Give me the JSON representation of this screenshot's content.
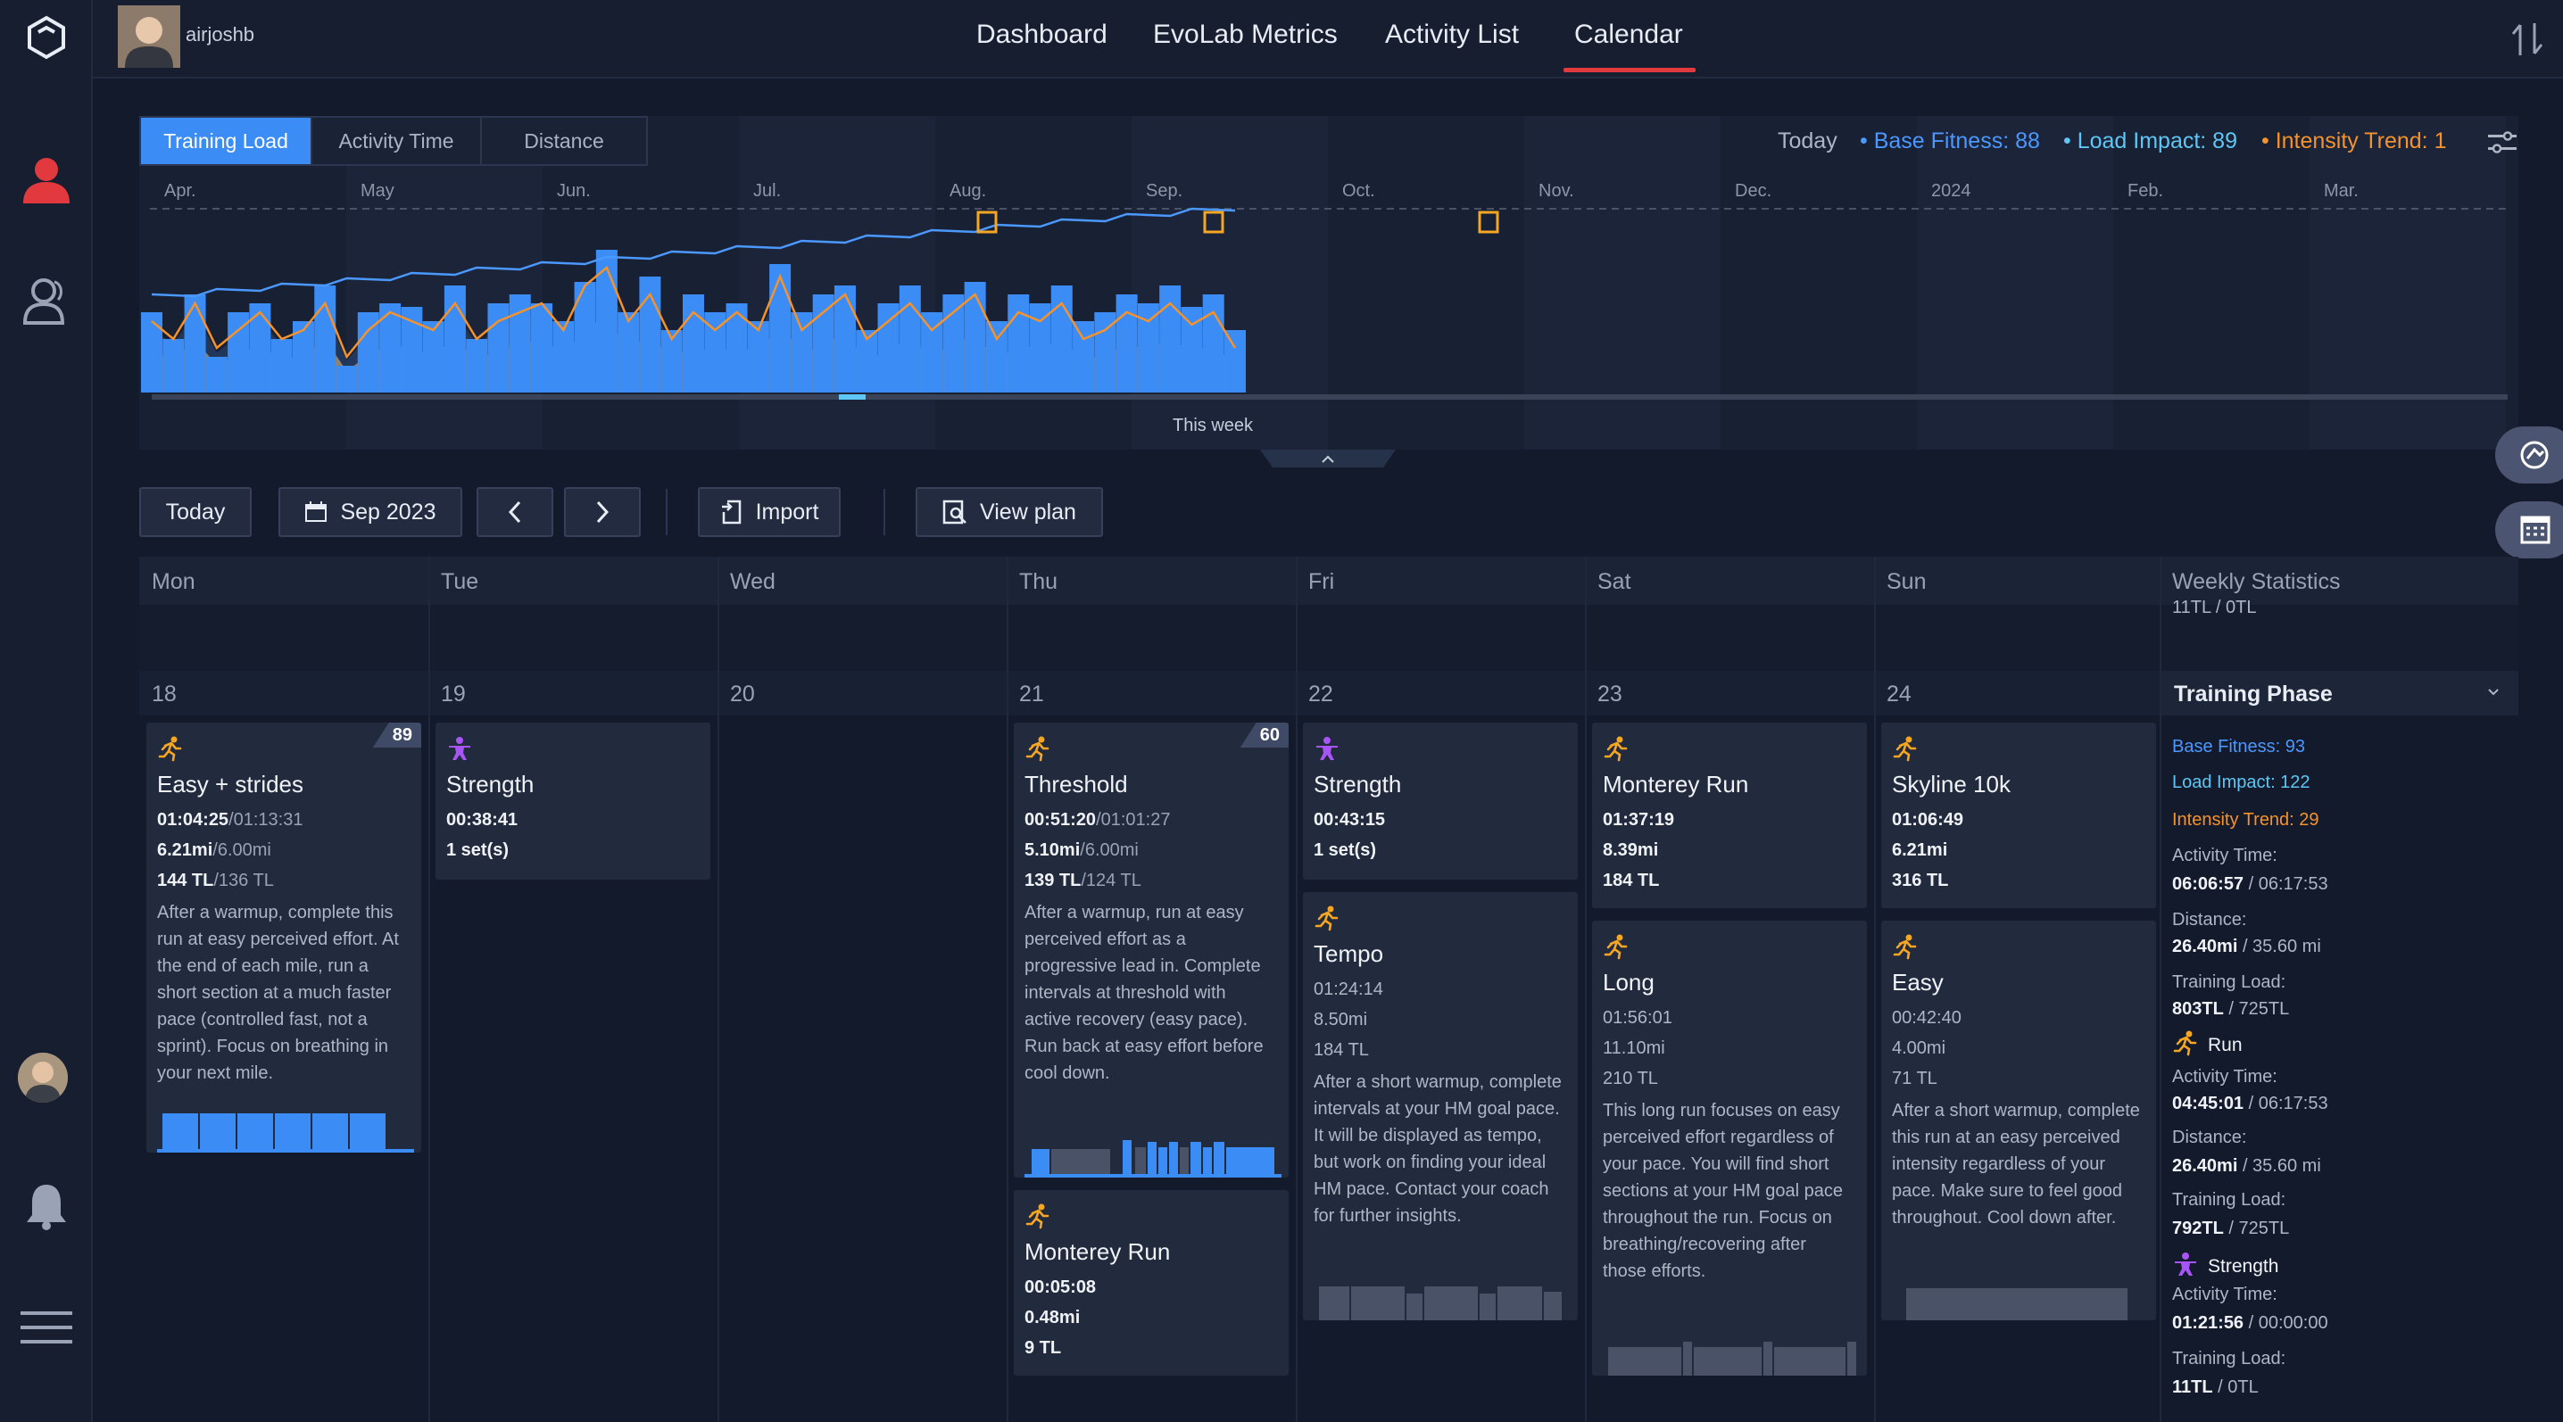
{
  "app": {
    "user_name": "airjoshb"
  },
  "nav": {
    "dashboard": "Dashboard",
    "evolab": "EvoLab Metrics",
    "activity_list": "Activity List",
    "calendar": "Calendar"
  },
  "chart": {
    "tabs": [
      "Training Load",
      "Activity Time",
      "Distance"
    ],
    "legend": {
      "today": "Today",
      "base_fitness": "Base Fitness: 88",
      "load_impact": "Load Impact: 89",
      "intensity_trend": "Intensity Trend: 1"
    },
    "months": [
      "Apr.",
      "May",
      "Jun.",
      "Jul.",
      "Aug.",
      "Sep.",
      "Oct.",
      "Nov.",
      "Dec.",
      "2024",
      "Feb.",
      "Mar.",
      "Apr."
    ],
    "this_week": "This week"
  },
  "chart_data": {
    "type": "bar",
    "x_range": [
      "Apr. 2023",
      "Apr. 2024"
    ],
    "series": [
      {
        "values": [
          0.45,
          0.3,
          0.55,
          0.2,
          0.45,
          0.5,
          0.3,
          0.4,
          0.6,
          0.15,
          0.45,
          0.5,
          0.48,
          0.4,
          0.6,
          0.3,
          0.5,
          0.55,
          0.5,
          0.4,
          0.62,
          0.8,
          0.45,
          0.65,
          0.35,
          0.55,
          0.45,
          0.5,
          0.4,
          0.72,
          0.45,
          0.55,
          0.6,
          0.35,
          0.5,
          0.6,
          0.45,
          0.55,
          0.62,
          0.4,
          0.55,
          0.5,
          0.6,
          0.4,
          0.45,
          0.55,
          0.5,
          0.6,
          0.48,
          0.55,
          0.35
        ]
      },
      {
        "values": [
          0.4,
          0.3,
          0.5,
          0.25,
          0.35,
          0.45,
          0.3,
          0.35,
          0.5,
          0.2,
          0.35,
          0.45,
          0.4,
          0.35,
          0.5,
          0.3,
          0.4,
          0.45,
          0.5,
          0.35,
          0.6,
          0.7,
          0.4,
          0.55,
          0.3,
          0.45,
          0.35,
          0.45,
          0.35,
          0.65,
          0.35,
          0.45,
          0.55,
          0.3,
          0.4,
          0.5,
          0.35,
          0.45,
          0.55,
          0.3,
          0.45,
          0.4,
          0.5,
          0.3,
          0.35,
          0.45,
          0.4,
          0.5,
          0.38,
          0.45,
          0.25
        ]
      }
    ]
  },
  "toolbar": {
    "today": "Today",
    "month": "Sep 2023",
    "import": "Import",
    "view_plan": "View plan"
  },
  "days": [
    "Mon",
    "Tue",
    "Wed",
    "Thu",
    "Fri",
    "Sat",
    "Sun",
    "Weekly Statistics"
  ],
  "prev_stat": "11TL / 0TL",
  "dates": [
    "18",
    "19",
    "20",
    "21",
    "22",
    "23",
    "24"
  ],
  "cards": {
    "mon_easy": {
      "title": "Easy + strides",
      "badge": "89",
      "time": "01:04:25",
      "time_plan": "/01:13:31",
      "dist": "6.21mi",
      "dist_plan": "/6.00mi",
      "tl": "144 TL",
      "tl_plan": "/136 TL",
      "desc": "After a warmup, complete this run at easy perceived effort. At the end of each mile, run a short section at a much faster pace (controlled fast, not a sprint). Focus on breathing in your next mile."
    },
    "tue_strength": {
      "title": "Strength",
      "time": "00:38:41",
      "sets": "1 set(s)"
    },
    "thu_threshold": {
      "title": "Threshold",
      "badge": "60",
      "time": "00:51:20",
      "time_plan": "/01:01:27",
      "dist": "5.10mi",
      "dist_plan": "/6.00mi",
      "tl": "139 TL",
      "tl_plan": "/124 TL",
      "desc": "After a warmup, run at easy perceived effort as a progressive lead in. Complete intervals at threshold with active recovery (easy pace). Run back at easy effort before cool down."
    },
    "thu_monterey": {
      "title": "Monterey Run",
      "time": "00:05:08",
      "dist": "0.48mi",
      "tl": "9 TL"
    },
    "fri_strength": {
      "title": "Strength",
      "time": "00:43:15",
      "sets": "1 set(s)"
    },
    "fri_tempo": {
      "title": "Tempo",
      "time": "01:24:14",
      "dist": "8.50mi",
      "tl": "184 TL",
      "desc": "After a short warmup, complete intervals at your HM goal pace. It will be displayed as tempo, but work on finding your ideal HM pace. Contact your coach for further insights."
    },
    "sat_monterey": {
      "title": "Monterey Run",
      "time": "01:37:19",
      "dist": "8.39mi",
      "tl": "184 TL"
    },
    "sat_long": {
      "title": "Long",
      "time": "01:56:01",
      "dist": "11.10mi",
      "tl": "210 TL",
      "desc": "This long run focuses on easy perceived effort regardless of your pace. You will find short sections at your HM goal pace throughout the run. Focus on breathing/recovering after those efforts."
    },
    "sun_skyline": {
      "title": "Skyline 10k",
      "time": "01:06:49",
      "dist": "6.21mi",
      "tl": "316 TL"
    },
    "sun_easy": {
      "title": "Easy",
      "time": "00:42:40",
      "dist": "4.00mi",
      "tl": "71 TL",
      "desc": "After a short warmup, complete this run at an easy perceived intensity regardless of your pace. Make sure to feel good throughout. Cool down after."
    }
  },
  "weekly": {
    "title": "Training Phase",
    "base_fitness": "Base Fitness: 93",
    "load_impact": "Load Impact: 122",
    "intensity_trend": "Intensity Trend: 29",
    "activity_time_label": "Activity Time:",
    "activity_time": "06:06:57",
    "activity_time_plan": " / 06:17:53",
    "distance_label": "Distance:",
    "distance": "26.40mi",
    "distance_plan": " / 35.60 mi",
    "tl_label": "Training Load:",
    "tl": "803TL",
    "tl_plan": " / 725TL",
    "run_label": "Run",
    "run_time_label": "Activity Time:",
    "run_time": "04:45:01",
    "run_time_plan": " / 06:17:53",
    "run_dist_label": "Distance:",
    "run_dist": "26.40mi",
    "run_dist_plan": " / 35.60 mi",
    "run_tl_label": "Training Load:",
    "run_tl": "792TL",
    "run_tl_plan": " / 725TL",
    "strength_label": "Strength",
    "str_time_label": "Activity Time:",
    "str_time": "01:21:56",
    "str_time_plan": " / 00:00:00",
    "str_tl_label": "Training Load:",
    "str_tl": "11TL",
    "str_tl_plan": " / 0TL"
  },
  "colors": {
    "accent": "#3b8df5",
    "nav_active": "#e23a3f",
    "run_icon": "#f5a623",
    "strength_icon": "#a855f7"
  }
}
